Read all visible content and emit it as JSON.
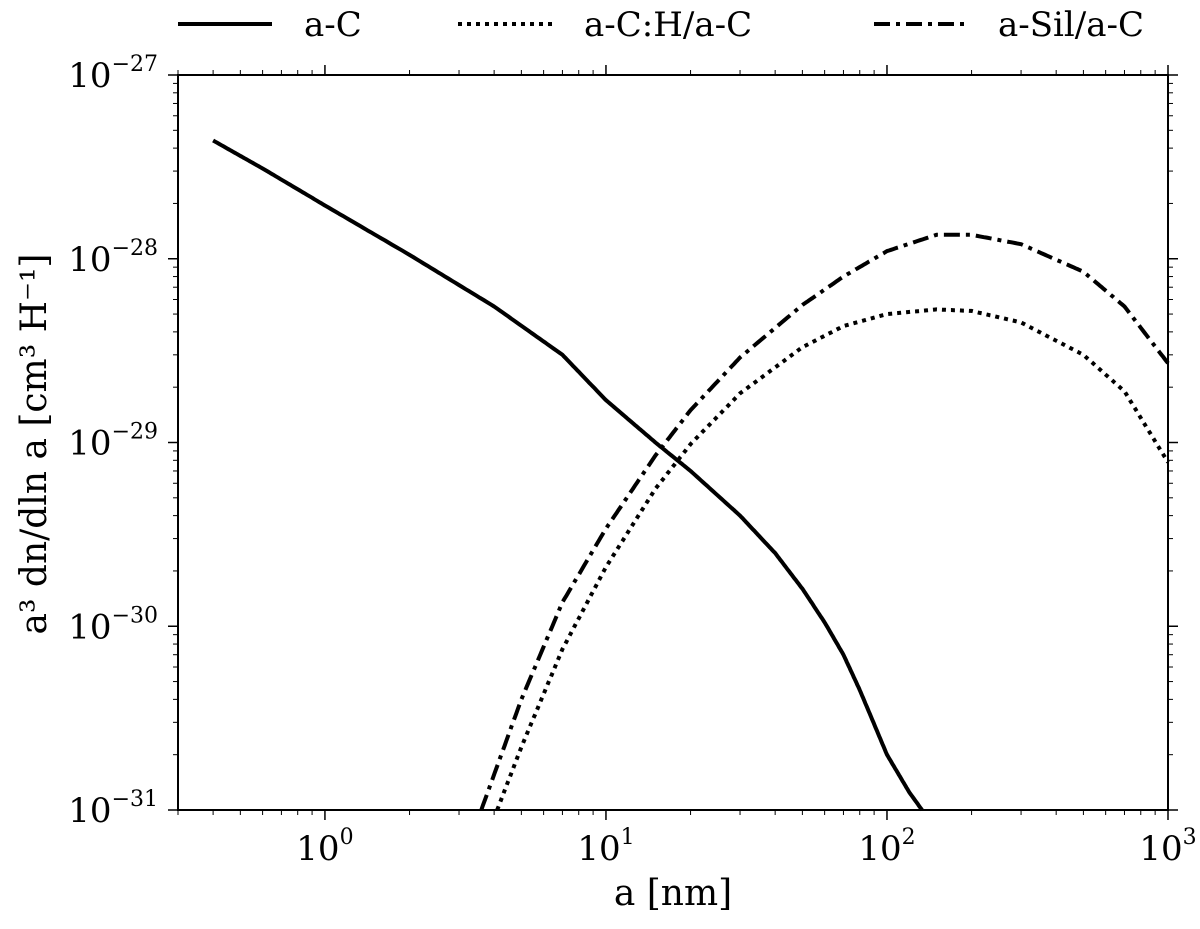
{
  "chart_data": {
    "type": "line",
    "xlabel": "a [nm]",
    "ylabel": "a³ dn/dln a [cm³ H⁻¹]",
    "x_scale": "log",
    "y_scale": "log",
    "xlim": [
      0.3,
      1000
    ],
    "ylim": [
      1e-31,
      1e-27
    ],
    "grid": false,
    "legend": {
      "placement": "top",
      "entries": [
        {
          "label": "a-C",
          "style": "solid"
        },
        {
          "label": "a-C:H/a-C",
          "style": "dotted"
        },
        {
          "label": "a-Sil/a-C",
          "style": "dashdot"
        }
      ]
    },
    "x_ticks": [
      {
        "value": 1,
        "base": "10",
        "exp": "0"
      },
      {
        "value": 10,
        "base": "10",
        "exp": "1"
      },
      {
        "value": 100,
        "base": "10",
        "exp": "2"
      },
      {
        "value": 1000,
        "base": "10",
        "exp": "3"
      }
    ],
    "y_ticks": [
      {
        "value": 1e-31,
        "base": "10",
        "exp": "−31"
      },
      {
        "value": 1e-30,
        "base": "10",
        "exp": "−30"
      },
      {
        "value": 1e-29,
        "base": "10",
        "exp": "−29"
      },
      {
        "value": 1e-28,
        "base": "10",
        "exp": "−28"
      },
      {
        "value": 1e-27,
        "base": "10",
        "exp": "−27"
      }
    ],
    "series": [
      {
        "name": "a-C",
        "style": "solid",
        "x": [
          0.4,
          0.6,
          1,
          2,
          4,
          7,
          10,
          15,
          20,
          30,
          40,
          50,
          60,
          70,
          80,
          100,
          120,
          140
        ],
        "y": [
          4.4e-28,
          3.1e-28,
          1.95e-28,
          1.05e-28,
          5.5e-29,
          3e-29,
          1.7e-29,
          1e-29,
          7e-30,
          4e-30,
          2.5e-30,
          1.6e-30,
          1.05e-30,
          7e-31,
          4.5e-31,
          2e-31,
          1.25e-31,
          9e-32
        ]
      },
      {
        "name": "a-C:H/a-C",
        "style": "dotted",
        "x": [
          4.1,
          5,
          7,
          10,
          15,
          20,
          30,
          50,
          70,
          100,
          150,
          200,
          300,
          500,
          700,
          1000
        ],
        "y": [
          1e-31,
          2.2e-31,
          7.5e-31,
          2.1e-30,
          5.6e-30,
          9.8e-30,
          1.85e-29,
          3.3e-29,
          4.3e-29,
          5e-29,
          5.3e-29,
          5.2e-29,
          4.5e-29,
          3e-29,
          1.9e-29,
          7.8e-30
        ]
      },
      {
        "name": "a-Sil/a-C",
        "style": "dashdot",
        "x": [
          3.6,
          5,
          7,
          10,
          15,
          20,
          30,
          50,
          70,
          100,
          150,
          200,
          300,
          500,
          700,
          1000
        ],
        "y": [
          1e-31,
          4e-31,
          1.35e-30,
          3.4e-30,
          8.5e-30,
          1.5e-29,
          2.9e-29,
          5.6e-29,
          8e-29,
          1.1e-28,
          1.35e-28,
          1.35e-28,
          1.2e-28,
          8.5e-29,
          5.5e-29,
          2.7e-29
        ]
      }
    ]
  }
}
